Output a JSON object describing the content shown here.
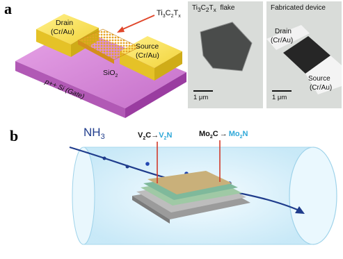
{
  "panel_a": {
    "letter": "a",
    "drain_label_1": "Drain",
    "drain_label_2": "(Cr/Au)",
    "source_label_1": "Source",
    "source_label_2": "(Cr/Au)",
    "oxide_label": "SiO",
    "oxide_sub": "2",
    "substrate_label": "p++ Si (Gate)",
    "material_main": "Ti",
    "material_sub1": "3",
    "material_mid": "C",
    "material_sub2": "2",
    "material_t": "T",
    "material_subx": "x",
    "micro_flake": {
      "title_main": "Ti",
      "title_sub1": "3",
      "title_mid": "C",
      "title_sub2": "2",
      "title_t": "T",
      "title_subx": "x",
      "title_suffix": "flake",
      "scale": "1 μm"
    },
    "micro_device": {
      "title": "Fabricated device",
      "drain_1": "Drain",
      "drain_2": "(Cr/Au)",
      "source_1": "Source",
      "source_2": "(Cr/Au)",
      "scale": "1 μm"
    }
  },
  "panel_b": {
    "letter": "b",
    "gas_main": "NH",
    "gas_sub": "3",
    "reaction_1_from": "V",
    "reaction_1_from_sub": "2",
    "reaction_1_from_c": "C",
    "reaction_1_arrow": "→",
    "reaction_1_to": "V",
    "reaction_1_to_sub": "2",
    "reaction_1_to_n": "N",
    "reaction_2_from": "Mo",
    "reaction_2_from_sub": "2",
    "reaction_2_from_c": "C",
    "reaction_2_arrow": "→",
    "reaction_2_to": "Mo",
    "reaction_2_to_sub": "2",
    "reaction_2_to_n": "N",
    "colors": {
      "product": "#2fa8d8",
      "arrow": "#1f3c8c",
      "tube": "#cfeefa"
    }
  }
}
